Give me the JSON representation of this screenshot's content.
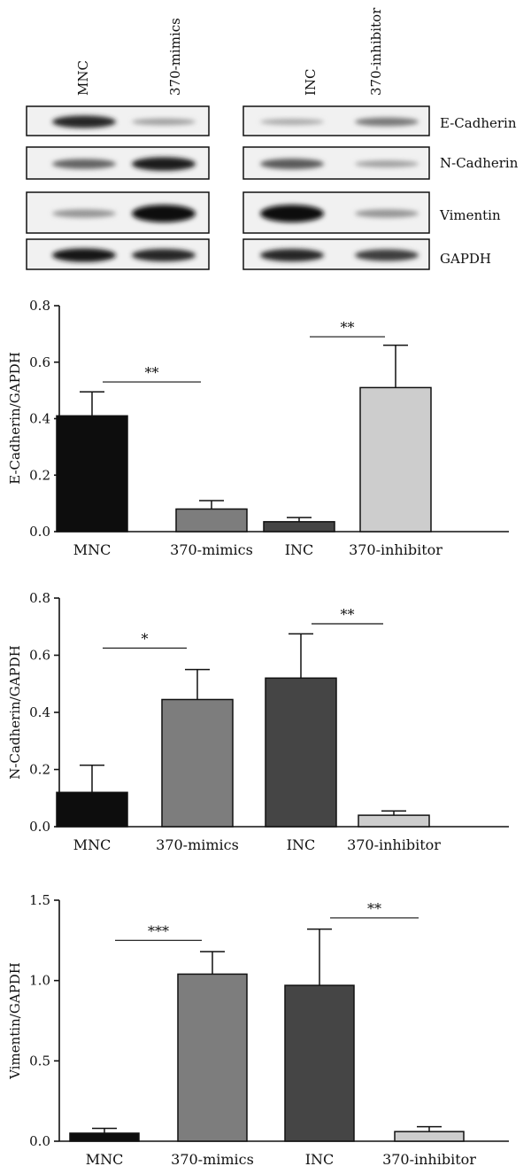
{
  "blot": {
    "left_lanes": [
      "MNC",
      "370-mimics"
    ],
    "right_lanes": [
      "INC",
      "370-inhibitor"
    ],
    "rows": [
      {
        "label": "E-Cadherin",
        "intensity": [
          0.85,
          0.25,
          0.2,
          0.45
        ]
      },
      {
        "label": "N-Cadherin",
        "intensity": [
          0.55,
          0.9,
          0.6,
          0.25
        ]
      },
      {
        "label": "Vimentin",
        "intensity": [
          0.3,
          1.0,
          1.0,
          0.3
        ]
      },
      {
        "label": "GAPDH",
        "intensity": [
          0.95,
          0.85,
          0.85,
          0.75
        ]
      }
    ]
  },
  "chart_data": [
    {
      "type": "bar",
      "categories": [
        "MNC",
        "370-mimics",
        "INC",
        "370-inhibitor"
      ],
      "values": [
        0.41,
        0.08,
        0.035,
        0.51
      ],
      "errors": [
        0.085,
        0.03,
        0.015,
        0.15
      ],
      "colors": [
        "#0d0d0d",
        "#7d7d7d",
        "#454545",
        "#cdcdcd"
      ],
      "ylabel": "E-Cadherin/GAPDH",
      "ylim": [
        0,
        0.8
      ],
      "yticks": [
        0.0,
        0.2,
        0.4,
        0.6,
        0.8
      ],
      "ytick_labels": [
        "0.0",
        "0.2",
        "0.4",
        "0.6",
        "0.8"
      ],
      "significance": [
        {
          "from": 0,
          "to": 1,
          "level": 0.53,
          "label": "**"
        },
        {
          "from": 2,
          "to": 3,
          "level": 0.69,
          "label": "**"
        }
      ]
    },
    {
      "type": "bar",
      "categories": [
        "MNC",
        "370-mimics",
        "INC",
        "370-inhibitor"
      ],
      "values": [
        0.12,
        0.445,
        0.52,
        0.04
      ],
      "errors": [
        0.095,
        0.105,
        0.155,
        0.015
      ],
      "colors": [
        "#0d0d0d",
        "#7d7d7d",
        "#454545",
        "#cdcdcd"
      ],
      "ylabel": "N-Cadherin/GAPDH",
      "ylim": [
        0,
        0.8
      ],
      "yticks": [
        0.0,
        0.2,
        0.4,
        0.6,
        0.8
      ],
      "ytick_labels": [
        "0.0",
        "0.2",
        "0.4",
        "0.6",
        "0.8"
      ],
      "significance": [
        {
          "from": 0,
          "to": 1,
          "level": 0.625,
          "label": "*"
        },
        {
          "from": 2,
          "to": 3,
          "level": 0.71,
          "label": "**"
        }
      ]
    },
    {
      "type": "bar",
      "categories": [
        "MNC",
        "370-mimics",
        "INC",
        "370-inhibitor"
      ],
      "values": [
        0.05,
        1.04,
        0.97,
        0.06
      ],
      "errors": [
        0.03,
        0.14,
        0.35,
        0.03
      ],
      "colors": [
        "#0d0d0d",
        "#7d7d7d",
        "#454545",
        "#cdcdcd"
      ],
      "ylabel": "Vimentin/GAPDH",
      "ylim": [
        0,
        1.5
      ],
      "yticks": [
        0.0,
        0.5,
        1.0,
        1.5
      ],
      "ytick_labels": [
        "0.0",
        "0.5",
        "1.0",
        "1.5"
      ],
      "significance": [
        {
          "from": 0,
          "to": 1,
          "level": 1.25,
          "label": "***"
        },
        {
          "from": 2,
          "to": 3,
          "level": 1.39,
          "label": "**"
        }
      ]
    }
  ]
}
